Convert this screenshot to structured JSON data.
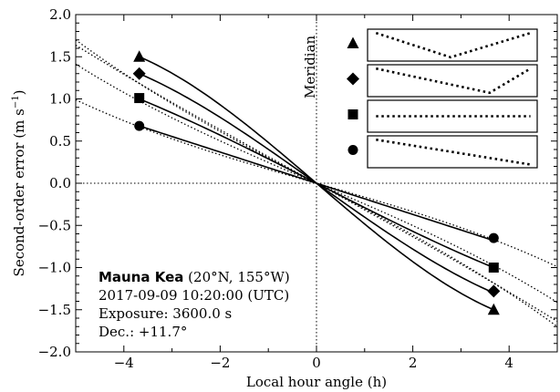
{
  "chart_data": {
    "type": "line",
    "xlabel": "Local hour angle (h)",
    "ylabel": "Second-order error (m s$^{-1}$)",
    "ylabel_base": "Second-order error (m s",
    "ylabel_exp": "−1",
    "ylabel_end": ")",
    "xlim": [
      -5,
      5
    ],
    "ylim": [
      -2.0,
      2.0
    ],
    "xticks": [
      -4,
      -2,
      0,
      2,
      4
    ],
    "xtick_labels": [
      "−4",
      "−2",
      "0",
      "2",
      "4"
    ],
    "yticks": [
      -2.0,
      -1.5,
      -1.0,
      -0.5,
      0.0,
      0.5,
      1.0,
      1.5,
      2.0
    ],
    "ytick_labels": [
      "−2.0",
      "−1.5",
      "−1.0",
      "−0.5",
      "0.0",
      "0.5",
      "1.0",
      "1.5",
      "2.0"
    ],
    "grid": false,
    "meridian_label": "Meridian",
    "annotation": {
      "bold": "Mauna Kea",
      "rest": " (20°N, 155°W)",
      "line2": "2017-09-09 10:20:00 (UTC)",
      "line3": "Exposure: 3600.0 s",
      "line4": "Dec.: +11.7°"
    },
    "series": [
      {
        "marker": "triangle",
        "amplitude": 1.5,
        "curvature": 0.2,
        "dot_slope": 0.315,
        "dot_curv": 0.0005,
        "marker_x": [
          -3.68,
          3.68
        ],
        "marker_y": [
          1.5,
          -1.5
        ]
      },
      {
        "marker": "diamond",
        "amplitude": 1.3,
        "curvature": 0.15,
        "dot_slope": 0.3,
        "dot_curv": 0.0016,
        "marker_x": [
          -3.68,
          3.68
        ],
        "marker_y": [
          1.3,
          -1.28
        ]
      },
      {
        "marker": "square",
        "amplitude": 1.0,
        "curvature": 0.07,
        "dot_slope": 0.245,
        "dot_curv": 0.0015,
        "marker_x": [
          -3.68,
          3.68
        ],
        "marker_y": [
          1.01,
          -1.0
        ]
      },
      {
        "marker": "circle",
        "amplitude": 0.68,
        "curvature": 0.0,
        "dot_slope": 0.163,
        "dot_curv": 0.0014,
        "marker_x": [
          -3.68,
          3.68
        ],
        "marker_y": [
          0.68,
          -0.65
        ]
      }
    ],
    "legend": {
      "placement": "top-right",
      "entries": [
        {
          "marker": "triangle",
          "profile": "v-shape"
        },
        {
          "marker": "diamond",
          "profile": "skewed-v"
        },
        {
          "marker": "square",
          "profile": "flat"
        },
        {
          "marker": "circle",
          "profile": "decreasing"
        }
      ]
    }
  }
}
